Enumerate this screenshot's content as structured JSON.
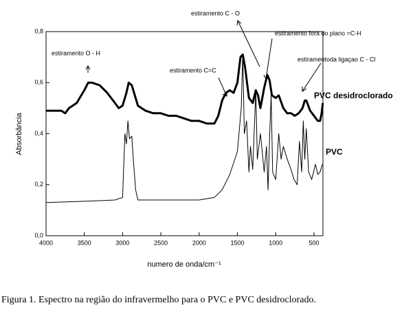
{
  "chart_data": {
    "type": "line",
    "x_label": "numero de onda/cm⁻¹",
    "y_label": "Absorbância",
    "caption": "Figura 1. Espectro na região do infravermelho para o PVC e PVC desidroclorado.",
    "annotations": [
      "estiramento O - H",
      "estiramento C=C",
      "estiramento C - O",
      "estiramento fora do plano =C-H",
      "estiramentoda ligaçao C - Cl"
    ],
    "xlim": [
      4000,
      383
    ],
    "xticks": [
      4000,
      3500,
      3000,
      2500,
      2000,
      1500,
      1000,
      500
    ],
    "ylim": [
      0,
      0.8
    ],
    "yticks": [
      {
        "value": 0,
        "label": "0,0"
      },
      {
        "value": 0.2,
        "label": "0,2"
      },
      {
        "value": 0.4,
        "label": "0,4"
      },
      {
        "value": 0.6,
        "label": "0,6"
      },
      {
        "value": 0.8,
        "label": "0,8"
      }
    ],
    "series": [
      {
        "name": "PVC desidroclorado",
        "color": "#000000",
        "line_width": 3,
        "x": [
          4000,
          3900,
          3800,
          3750,
          3700,
          3600,
          3500,
          3450,
          3400,
          3300,
          3200,
          3100,
          3050,
          3000,
          2950,
          2920,
          2880,
          2850,
          2800,
          2700,
          2600,
          2500,
          2400,
          2300,
          2200,
          2100,
          2000,
          1900,
          1800,
          1750,
          1700,
          1650,
          1600,
          1550,
          1500,
          1460,
          1430,
          1400,
          1350,
          1300,
          1260,
          1230,
          1200,
          1150,
          1110,
          1080,
          1050,
          1000,
          960,
          900,
          850,
          800,
          750,
          700,
          650,
          620,
          600,
          550,
          500,
          450,
          420,
          400,
          385
        ],
        "values": [
          0.49,
          0.49,
          0.49,
          0.48,
          0.5,
          0.52,
          0.57,
          0.6,
          0.6,
          0.59,
          0.56,
          0.52,
          0.5,
          0.51,
          0.56,
          0.6,
          0.59,
          0.56,
          0.51,
          0.49,
          0.48,
          0.48,
          0.47,
          0.47,
          0.46,
          0.45,
          0.45,
          0.44,
          0.44,
          0.47,
          0.53,
          0.56,
          0.57,
          0.56,
          0.6,
          0.7,
          0.71,
          0.66,
          0.54,
          0.52,
          0.57,
          0.55,
          0.5,
          0.58,
          0.63,
          0.61,
          0.55,
          0.54,
          0.55,
          0.5,
          0.48,
          0.48,
          0.47,
          0.48,
          0.5,
          0.53,
          0.53,
          0.49,
          0.47,
          0.45,
          0.45,
          0.48,
          0.52
        ]
      },
      {
        "name": "PVC",
        "color": "#000000",
        "line_width": 1,
        "x": [
          4000,
          3500,
          3100,
          3000,
          2970,
          2950,
          2930,
          2910,
          2880,
          2860,
          2830,
          2800,
          2500,
          2000,
          1800,
          1700,
          1600,
          1500,
          1450,
          1430,
          1410,
          1380,
          1350,
          1330,
          1300,
          1260,
          1240,
          1200,
          1150,
          1120,
          1100,
          1080,
          1060,
          1040,
          1000,
          960,
          930,
          900,
          850,
          800,
          760,
          720,
          690,
          660,
          640,
          620,
          600,
          570,
          530,
          480,
          450,
          420,
          390
        ],
        "values": [
          0.13,
          0.135,
          0.14,
          0.15,
          0.4,
          0.36,
          0.45,
          0.38,
          0.39,
          0.3,
          0.18,
          0.14,
          0.14,
          0.14,
          0.15,
          0.18,
          0.24,
          0.33,
          0.5,
          0.71,
          0.4,
          0.45,
          0.25,
          0.35,
          0.26,
          0.57,
          0.3,
          0.4,
          0.25,
          0.35,
          0.18,
          0.38,
          0.55,
          0.25,
          0.22,
          0.4,
          0.3,
          0.35,
          0.3,
          0.26,
          0.22,
          0.2,
          0.37,
          0.25,
          0.45,
          0.3,
          0.42,
          0.25,
          0.22,
          0.28,
          0.24,
          0.25,
          0.28
        ]
      }
    ]
  }
}
